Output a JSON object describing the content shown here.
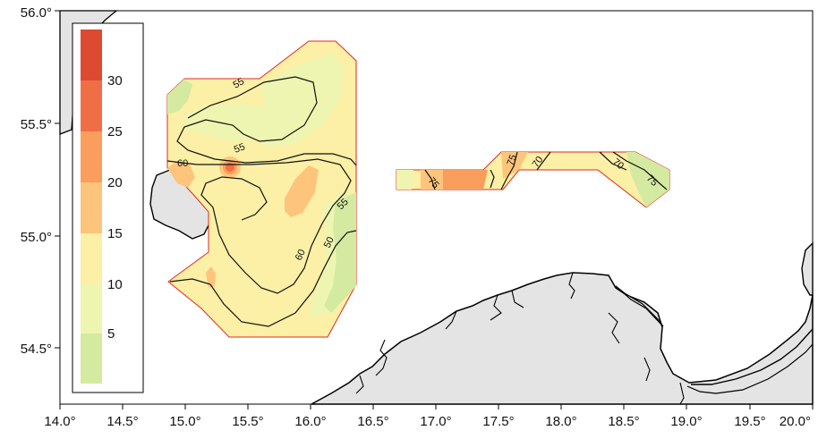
{
  "map": {
    "lon_range": [
      14.0,
      20.0
    ],
    "lat_range": [
      54.26,
      56.0
    ],
    "x_ticks": [
      "14.0°",
      "14.5°",
      "15.0°",
      "15.5°",
      "16.0°",
      "16.5°",
      "17.0°",
      "17.5°",
      "18.0°",
      "18.5°",
      "19.0°",
      "19.5°",
      "20.0°"
    ],
    "y_ticks": [
      "56.0°",
      "55.5°",
      "55.0°",
      "54.5°"
    ],
    "colors": {
      "land": "#e4e4e4",
      "coast": "#000000",
      "survey_outline": "#e0281e"
    }
  },
  "legend": {
    "bins": [
      {
        "label": "",
        "color": "#dc4a32"
      },
      {
        "label": "30",
        "color": "#f06e46"
      },
      {
        "label": "25",
        "color": "#f99e5c"
      },
      {
        "label": "20",
        "color": "#fdc57b"
      },
      {
        "label": "15",
        "color": "#fcefa6"
      },
      {
        "label": "10",
        "color": "#eef5b0"
      },
      {
        "label": "5",
        "color": "#d4eaa0"
      }
    ]
  },
  "contour_labels": [
    "55",
    "55",
    "60",
    "60",
    "55",
    "50",
    "75",
    "75",
    "70",
    "70",
    "75"
  ]
}
